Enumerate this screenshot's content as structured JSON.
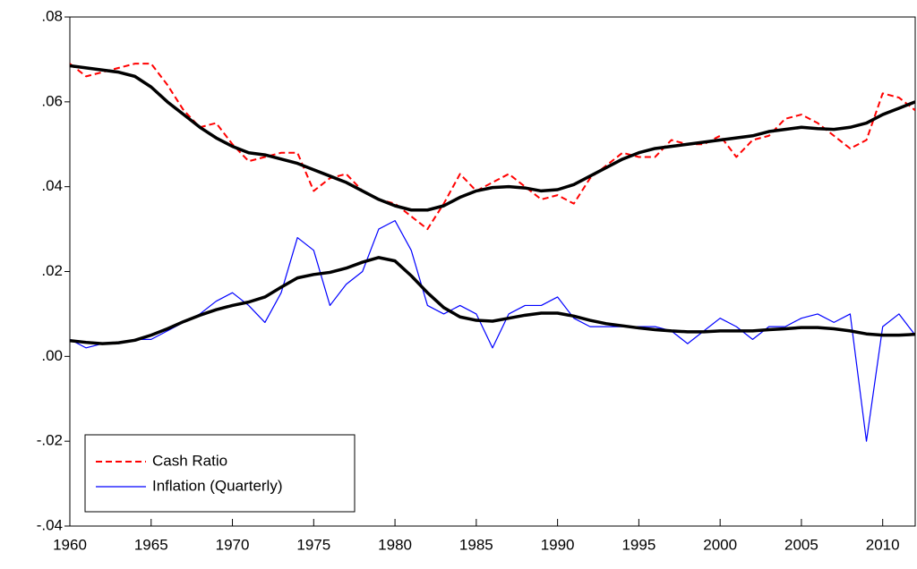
{
  "chart_data": {
    "type": "line",
    "x": [
      1960,
      1961,
      1962,
      1963,
      1964,
      1965,
      1966,
      1967,
      1968,
      1969,
      1970,
      1971,
      1972,
      1973,
      1974,
      1975,
      1976,
      1977,
      1978,
      1979,
      1980,
      1981,
      1982,
      1983,
      1984,
      1985,
      1986,
      1987,
      1988,
      1989,
      1990,
      1991,
      1992,
      1993,
      1994,
      1995,
      1996,
      1997,
      1998,
      1999,
      2000,
      2001,
      2002,
      2003,
      2004,
      2005,
      2006,
      2007,
      2008,
      2009,
      2010,
      2011,
      2012
    ],
    "series": [
      {
        "name": "Cash Ratio",
        "color": "#ff0000",
        "style": "dashed",
        "values": [
          0.069,
          0.066,
          0.067,
          0.068,
          0.069,
          0.069,
          0.064,
          0.058,
          0.054,
          0.055,
          0.05,
          0.046,
          0.047,
          0.048,
          0.048,
          0.039,
          0.042,
          0.043,
          0.039,
          0.037,
          0.036,
          0.033,
          0.03,
          0.036,
          0.043,
          0.039,
          0.041,
          0.043,
          0.04,
          0.037,
          0.038,
          0.036,
          0.042,
          0.045,
          0.048,
          0.047,
          0.047,
          0.051,
          0.05,
          0.05,
          0.052,
          0.047,
          0.051,
          0.052,
          0.056,
          0.057,
          0.055,
          0.052,
          0.049,
          0.051,
          0.062,
          0.061,
          0.058
        ]
      },
      {
        "name": "Inflation (Quarterly)",
        "color": "#0000ff",
        "style": "solid",
        "values": [
          0.004,
          0.002,
          0.003,
          0.003,
          0.004,
          0.004,
          0.006,
          0.008,
          0.01,
          0.013,
          0.015,
          0.012,
          0.008,
          0.015,
          0.028,
          0.025,
          0.012,
          0.017,
          0.02,
          0.03,
          0.032,
          0.025,
          0.012,
          0.01,
          0.012,
          0.01,
          0.002,
          0.01,
          0.012,
          0.012,
          0.014,
          0.009,
          0.007,
          0.007,
          0.007,
          0.007,
          0.007,
          0.006,
          0.003,
          0.006,
          0.009,
          0.007,
          0.004,
          0.007,
          0.007,
          0.009,
          0.01,
          0.008,
          0.01,
          -0.02,
          0.007,
          0.01,
          0.005
        ]
      },
      {
        "color": "#000000",
        "style": "thick",
        "values": [
          0.0685,
          0.068,
          0.0675,
          0.067,
          0.066,
          0.0635,
          0.06,
          0.057,
          0.054,
          0.0515,
          0.0495,
          0.048,
          0.0475,
          0.0465,
          0.0455,
          0.044,
          0.0425,
          0.041,
          0.039,
          0.037,
          0.0355,
          0.0345,
          0.0345,
          0.0355,
          0.0375,
          0.039,
          0.0398,
          0.04,
          0.0397,
          0.039,
          0.0393,
          0.0405,
          0.0425,
          0.0445,
          0.0465,
          0.048,
          0.049,
          0.0495,
          0.05,
          0.0505,
          0.051,
          0.0515,
          0.052,
          0.053,
          0.0535,
          0.054,
          0.0537,
          0.0535,
          0.054,
          0.055,
          0.057,
          0.0585,
          0.06
        ]
      },
      {
        "color": "#000000",
        "style": "thick",
        "values": [
          0.0037,
          0.0033,
          0.003,
          0.0032,
          0.0038,
          0.005,
          0.0065,
          0.0082,
          0.0097,
          0.011,
          0.012,
          0.0128,
          0.014,
          0.0163,
          0.0185,
          0.0193,
          0.0198,
          0.0208,
          0.0222,
          0.0233,
          0.0225,
          0.019,
          0.015,
          0.0115,
          0.0093,
          0.0085,
          0.0083,
          0.009,
          0.0097,
          0.0102,
          0.0102,
          0.0095,
          0.0085,
          0.0077,
          0.0072,
          0.0067,
          0.0063,
          0.006,
          0.0058,
          0.0058,
          0.006,
          0.006,
          0.006,
          0.0063,
          0.0065,
          0.0068,
          0.0068,
          0.0065,
          0.006,
          0.0053,
          0.005,
          0.005,
          0.0052
        ]
      }
    ],
    "xlim": [
      1960,
      2012
    ],
    "xticks": [
      1960,
      1965,
      1970,
      1975,
      1980,
      1985,
      1990,
      1995,
      2000,
      2005,
      2010
    ],
    "ylim": [
      -0.04,
      0.08
    ],
    "yticks": [
      {
        "value": -0.04,
        "label": "-.04"
      },
      {
        "value": -0.02,
        "label": "-.02"
      },
      {
        "value": 0,
        "label": ".00"
      },
      {
        "value": 0.02,
        "label": ".02"
      },
      {
        "value": 0.04,
        "label": ".04"
      },
      {
        "value": 0.06,
        "label": ".06"
      },
      {
        "value": 0.08,
        "label": ".08"
      }
    ],
    "legend": "lower left"
  }
}
